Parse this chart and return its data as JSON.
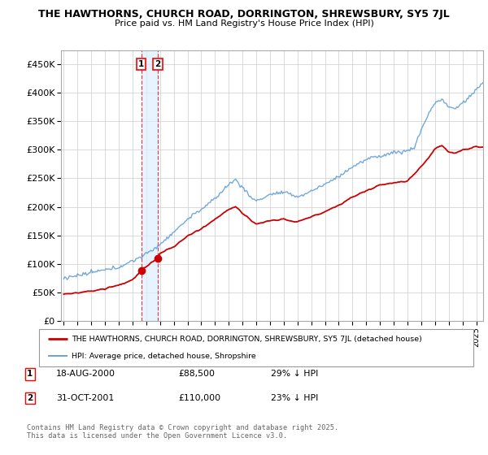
{
  "title_line1": "THE HAWTHORNS, CHURCH ROAD, DORRINGTON, SHREWSBURY, SY5 7JL",
  "title_line2": "Price paid vs. HM Land Registry's House Price Index (HPI)",
  "ylabel_ticks": [
    "£0",
    "£50K",
    "£100K",
    "£150K",
    "£200K",
    "£250K",
    "£300K",
    "£350K",
    "£400K",
    "£450K"
  ],
  "ylabel_values": [
    0,
    50000,
    100000,
    150000,
    200000,
    250000,
    300000,
    350000,
    400000,
    450000
  ],
  "ylim": [
    0,
    475000
  ],
  "xlim_start": 1994.8,
  "xlim_end": 2025.5,
  "sale1_date": "18-AUG-2000",
  "sale1_price": "£88,500",
  "sale1_hpi": "29% ↓ HPI",
  "sale1_x": 2000.63,
  "sale1_y": 88500,
  "sale2_date": "31-OCT-2001",
  "sale2_price": "£110,000",
  "sale2_hpi": "23% ↓ HPI",
  "sale2_x": 2001.83,
  "sale2_y": 110000,
  "legend_line1": "THE HAWTHORNS, CHURCH ROAD, DORRINGTON, SHREWSBURY, SY5 7JL (detached house)",
  "legend_line2": "HPI: Average price, detached house, Shropshire",
  "footer": "Contains HM Land Registry data © Crown copyright and database right 2025.\nThis data is licensed under the Open Government Licence v3.0.",
  "red_color": "#cc0000",
  "blue_color": "#5b9bd5",
  "shade_color": "#ddeeff",
  "background_color": "#ffffff",
  "grid_color": "#cccccc"
}
